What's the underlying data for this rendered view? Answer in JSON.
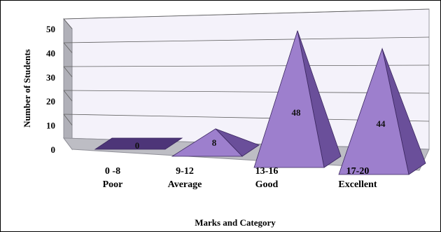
{
  "chart_data": {
    "type": "bar",
    "style": "3d-pyramid",
    "categories": [
      {
        "range": "0 -8",
        "label": "Poor"
      },
      {
        "range": "9-12",
        "label": "Average"
      },
      {
        "range": "13-16",
        "label": "Good"
      },
      {
        "range": "17-20",
        "label": "Excellent"
      }
    ],
    "values": [
      0,
      8,
      48,
      44
    ],
    "data_labels": [
      "0",
      "8",
      "48",
      "44"
    ],
    "xlabel": "Marks and Category",
    "ylabel": "Number of Students",
    "yticks": [
      "0",
      "10",
      "20",
      "30",
      "40",
      "50"
    ],
    "ylim": [
      0,
      50
    ],
    "grid": true,
    "legend": "none",
    "colors": {
      "bar_front": "#9d7fcd",
      "bar_side": "#6a4f9a",
      "bar_base": "#4d3578",
      "back_wall": "#f4f2fa",
      "side_wall": "#b0b0b8",
      "floor": "#bdbdc4",
      "grid": "#606060"
    }
  }
}
